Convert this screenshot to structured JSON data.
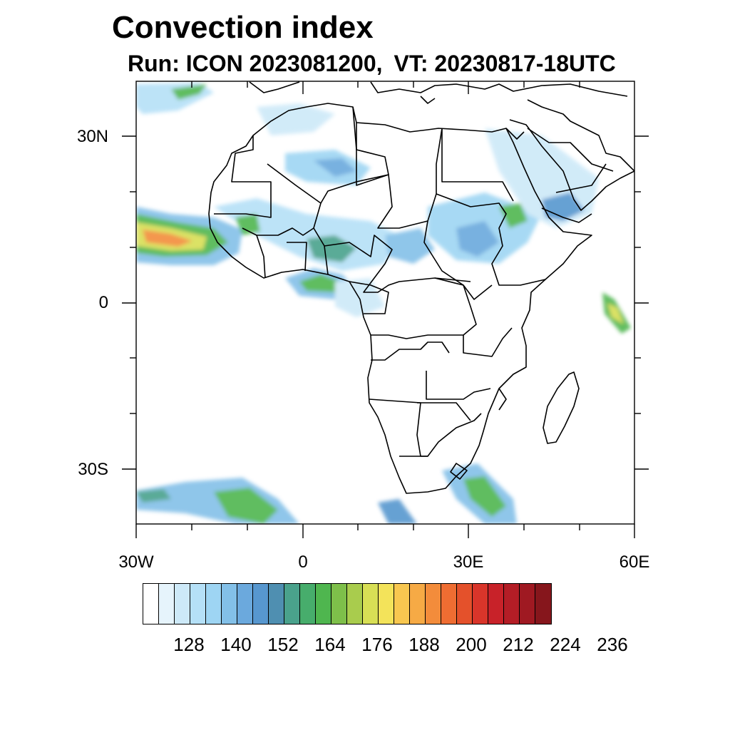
{
  "title": "Convection index",
  "subtitle": {
    "run": "Run: ICON 2023081200,",
    "valid_time": "VT: 20230817-18UTC"
  },
  "axes": {
    "lat_labels": [
      "30N",
      "0",
      "30S"
    ],
    "lon_labels": [
      "30W",
      "0",
      "30E",
      "60E"
    ]
  },
  "colorbar": {
    "colors": [
      "#ffffff",
      "#e6f4fc",
      "#cde9f8",
      "#b5e0f7",
      "#9ed5f3",
      "#83c0e8",
      "#6ba9dd",
      "#5797cf",
      "#4f8fb1",
      "#4aa28c",
      "#47ad6c",
      "#4fb64f",
      "#7ebf4a",
      "#a9cc4d",
      "#d8df55",
      "#f3e35a",
      "#f8c750",
      "#f6aa45",
      "#f38c3b",
      "#ef6d32",
      "#e4512b",
      "#d9352a",
      "#c82229",
      "#b41d26",
      "#9f1922",
      "#86161c"
    ],
    "tick_labels": [
      "128",
      "140",
      "152",
      "164",
      "176",
      "188",
      "200",
      "212",
      "224",
      "236"
    ]
  },
  "colors": {
    "coastline": "#000000",
    "background": "#ffffff"
  }
}
